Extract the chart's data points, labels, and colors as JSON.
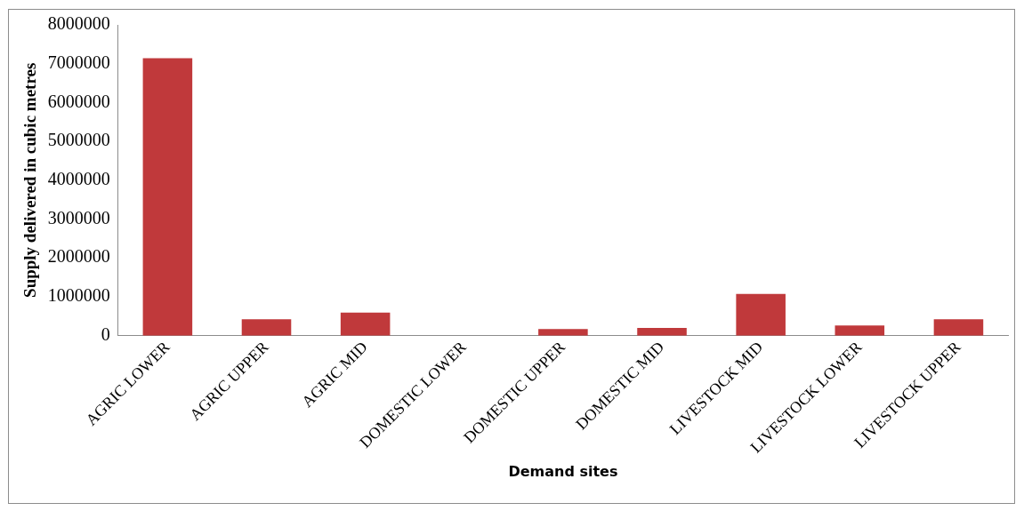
{
  "chart_data": {
    "type": "bar",
    "xlabel": "Demand sites",
    "ylabel": "Supply delivered in cubic metres",
    "categories": [
      "AGRIC LOWER",
      "AGRIC UPPER",
      "AGRIC MID",
      "DOMESTIC LOWER",
      "DOMESTIC UPPER",
      "DOMESTIC MID",
      "LIVESTOCK MID",
      "LIVESTOCK LOWER",
      "LIVESTOCK UPPER"
    ],
    "values": [
      7140000,
      420000,
      590000,
      null,
      170000,
      200000,
      1070000,
      260000,
      420000
    ],
    "color": "#c0393b",
    "ylim": [
      0,
      8000000
    ],
    "yticks": [
      0,
      1000000,
      2000000,
      3000000,
      4000000,
      5000000,
      6000000,
      7000000,
      8000000
    ],
    "grid": false,
    "legend": false
  }
}
